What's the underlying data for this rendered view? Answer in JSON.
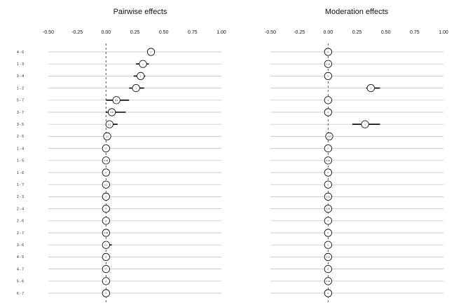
{
  "chart_data": [
    {
      "type": "scatter",
      "title": "Pairwise effects",
      "xlabel": "",
      "ylabel": "",
      "xlim": [
        -0.5,
        1.0
      ],
      "xticks": [
        "-0.50",
        "-0.25",
        "0.00",
        "0.25",
        "0.50",
        "0.75",
        "1.00"
      ],
      "rows": [
        "4 - 6",
        "1 - 3",
        "3 - 4",
        "1 - 2",
        "5 - 7",
        "3 - 7",
        "3 - 5",
        "2 - 5",
        "1 - 4",
        "1 - 5",
        "1 - 6",
        "1 - 7",
        "2 - 3",
        "2 - 4",
        "2 - 6",
        "2 - 7",
        "3 - 6",
        "4 - 5",
        "4 - 7",
        "5 - 6",
        "6 - 7"
      ],
      "estimates": [
        0.39,
        0.32,
        0.3,
        0.26,
        0.09,
        0.05,
        0.03,
        0.01,
        0.0,
        0.0,
        0.0,
        0.0,
        0.0,
        0.0,
        0.0,
        0.0,
        0.0,
        0.0,
        0.0,
        0.0,
        0.0
      ],
      "lower": [
        0.36,
        0.26,
        0.24,
        0.2,
        0.0,
        0.0,
        0.0,
        0.0,
        0.0,
        0.0,
        0.0,
        0.0,
        0.0,
        0.0,
        0.0,
        0.0,
        0.0,
        0.0,
        0.0,
        0.0,
        0.0
      ],
      "upper": [
        0.42,
        0.37,
        0.34,
        0.33,
        0.2,
        0.17,
        0.1,
        0.02,
        0.0,
        0.01,
        0.0,
        0.0,
        0.0,
        0.0,
        0.0,
        0.0,
        0.05,
        0.0,
        0.0,
        0.0,
        0.0
      ],
      "point_labels": [
        "1",
        "1",
        "1",
        "1",
        "0.9",
        "0.6",
        "0.5",
        "0.2",
        "0",
        "0.02",
        "0",
        "0.1",
        "0",
        "0",
        "0",
        "0.08",
        "0.1",
        "0",
        "0",
        "0",
        "0"
      ],
      "grid": true
    },
    {
      "type": "scatter",
      "title": "Moderation effects",
      "xlabel": "",
      "ylabel": "",
      "xlim": [
        -0.5,
        1.0
      ],
      "xticks": [
        "-0.50",
        "-0.25",
        "0.00",
        "0.25",
        "0.50",
        "0.75",
        "1.00"
      ],
      "rows": [
        "4 - 6",
        "1 - 3",
        "3 - 4",
        "1 - 2",
        "5 - 7",
        "3 - 7",
        "3 - 5",
        "2 - 5",
        "1 - 4",
        "1 - 5",
        "1 - 6",
        "1 - 7",
        "2 - 3",
        "2 - 4",
        "2 - 6",
        "2 - 7",
        "3 - 6",
        "4 - 5",
        "4 - 7",
        "5 - 6",
        "6 - 7"
      ],
      "estimates": [
        0.0,
        0.0,
        0.0,
        0.37,
        0.0,
        0.0,
        0.32,
        0.01,
        0.0,
        0.0,
        0.0,
        0.0,
        0.0,
        0.0,
        0.0,
        0.0,
        0.0,
        0.0,
        0.0,
        0.0,
        0.0
      ],
      "lower": [
        0.0,
        0.0,
        0.0,
        0.33,
        0.0,
        0.0,
        0.21,
        0.0,
        0.0,
        0.0,
        0.0,
        0.0,
        0.0,
        0.0,
        0.0,
        0.0,
        0.0,
        0.0,
        0.0,
        0.0,
        0.0
      ],
      "upper": [
        0.0,
        0.0,
        0.0,
        0.45,
        0.0,
        0.0,
        0.45,
        0.02,
        0.0,
        0.0,
        0.0,
        0.0,
        0.0,
        0.0,
        0.0,
        0.0,
        0.0,
        0.0,
        0.0,
        0.0,
        0.0
      ],
      "point_labels": [
        "0",
        "0.04",
        "0",
        "1",
        "0",
        "0",
        "1",
        "0.03",
        "0",
        "0.01",
        "0",
        "0",
        "0.01",
        "0.06",
        "0",
        "0",
        "0",
        "0.01",
        "0",
        "0.05",
        "0"
      ],
      "grid": true
    }
  ]
}
